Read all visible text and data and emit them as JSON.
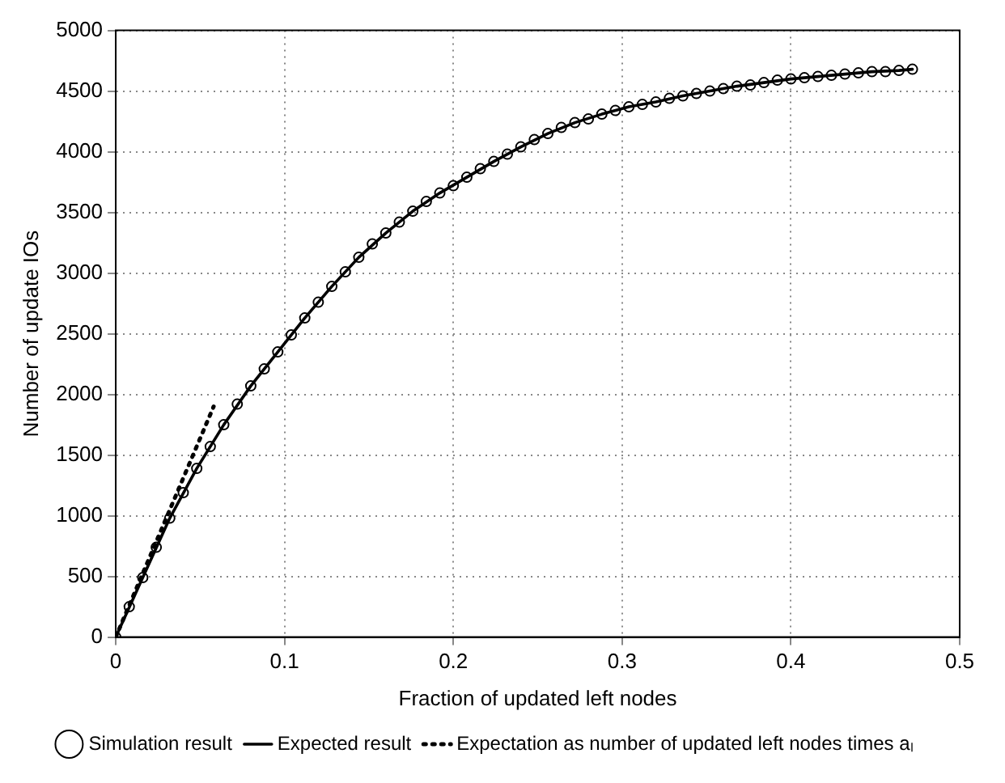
{
  "chart_data": {
    "type": "scatter",
    "xlabel": "Fraction of updated left nodes",
    "ylabel": "Number of update IOs",
    "xlim": [
      0,
      0.5
    ],
    "xticks": [
      0,
      0.1,
      0.2,
      0.3,
      0.4,
      0.5
    ],
    "ylim": [
      0,
      5000
    ],
    "yticks": [
      0,
      500,
      1000,
      1500,
      2000,
      2500,
      3000,
      3500,
      4000,
      4500,
      5000
    ],
    "grid": true,
    "legend": "bottom",
    "series": [
      {
        "type": "scatter",
        "name": "Simulation result",
        "color": "#000000",
        "marker": "circle",
        "x": [
          0,
          0.008,
          0.016,
          0.024,
          0.032,
          0.04,
          0.048,
          0.056,
          0.064,
          0.072,
          0.08,
          0.088,
          0.096,
          0.104,
          0.112,
          0.12,
          0.128,
          0.136,
          0.144,
          0.152,
          0.16,
          0.168,
          0.176,
          0.184,
          0.192,
          0.2,
          0.208,
          0.216,
          0.224,
          0.232,
          0.24,
          0.248,
          0.256,
          0.264,
          0.272,
          0.28,
          0.288,
          0.296,
          0.304,
          0.312,
          0.32,
          0.328,
          0.336,
          0.344,
          0.352,
          0.36,
          0.368,
          0.376,
          0.384,
          0.392,
          0.4,
          0.408,
          0.416,
          0.424,
          0.432,
          0.44,
          0.448,
          0.456,
          0.464,
          0.472
        ],
        "values": [
          0,
          250,
          490,
          740,
          980,
          1190,
          1390,
          1570,
          1750,
          1920,
          2070,
          2210,
          2350,
          2490,
          2630,
          2760,
          2890,
          3010,
          3130,
          3240,
          3330,
          3420,
          3510,
          3590,
          3660,
          3720,
          3790,
          3860,
          3920,
          3980,
          4040,
          4100,
          4150,
          4200,
          4240,
          4270,
          4310,
          4340,
          4370,
          4390,
          4410,
          4440,
          4460,
          4480,
          4500,
          4520,
          4540,
          4550,
          4570,
          4590,
          4600,
          4610,
          4620,
          4630,
          4640,
          4650,
          4660,
          4660,
          4670,
          4680
        ]
      },
      {
        "type": "line",
        "name": "Expected result",
        "color": "#000000",
        "marker": "none",
        "line_style": "solid",
        "x": [
          0,
          0.016,
          0.032,
          0.048,
          0.064,
          0.08,
          0.096,
          0.112,
          0.128,
          0.144,
          0.16,
          0.176,
          0.192,
          0.208,
          0.224,
          0.24,
          0.256,
          0.272,
          0.288,
          0.304,
          0.32,
          0.336,
          0.352,
          0.368,
          0.384,
          0.4,
          0.416,
          0.432,
          0.448,
          0.464,
          0.472
        ],
        "values": [
          0,
          490,
          980,
          1390,
          1750,
          2070,
          2350,
          2630,
          2890,
          3130,
          3330,
          3510,
          3660,
          3790,
          3920,
          4040,
          4150,
          4240,
          4310,
          4370,
          4410,
          4460,
          4500,
          4540,
          4570,
          4600,
          4620,
          4640,
          4660,
          4670,
          4680
        ]
      },
      {
        "type": "line",
        "name": "Expectation as number of updated left nodes times aₗ",
        "color": "#000000",
        "marker": "none",
        "line_style": "dotted",
        "x": [
          0,
          0.058
        ],
        "values": [
          0,
          1900
        ]
      }
    ]
  }
}
